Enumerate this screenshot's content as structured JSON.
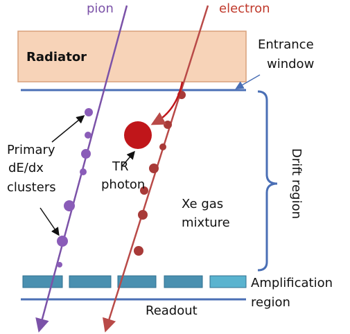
{
  "tracks": {
    "pion": "pion",
    "electron": "electron"
  },
  "labels": {
    "radiator": "Radiator",
    "entrance_window": [
      "Entrance",
      "window"
    ],
    "primary_clusters": [
      "Primary",
      "dE/dx",
      "clusters"
    ],
    "tr_photon": [
      "TR",
      "photon"
    ],
    "gas": [
      "Xe gas",
      "mixture"
    ],
    "drift_region": "Drift region",
    "amplification_region": [
      "Amplification",
      "region"
    ],
    "readout": "Readout"
  }
}
